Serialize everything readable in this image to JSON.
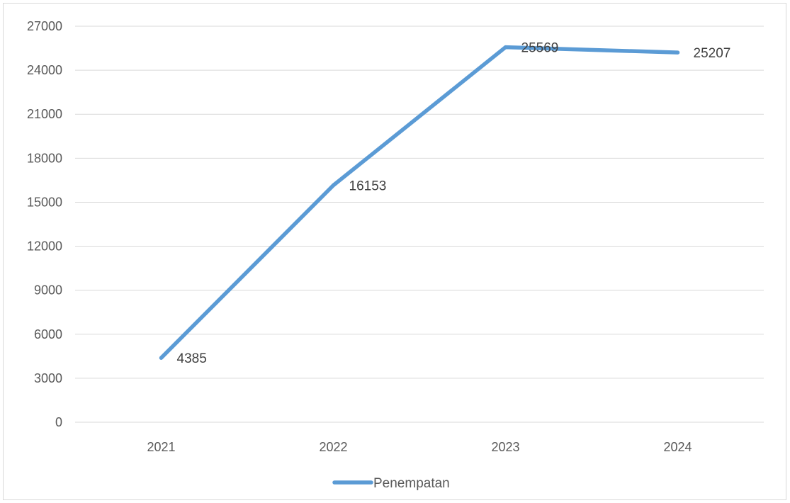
{
  "chart_data": {
    "type": "line",
    "title": "",
    "xlabel": "",
    "ylabel": "",
    "categories": [
      "2021",
      "2022",
      "2023",
      "2024"
    ],
    "ylim": [
      0,
      27000
    ],
    "ytick_step": 3000,
    "yticks": [
      "0",
      "3000",
      "6000",
      "9000",
      "12000",
      "15000",
      "18000",
      "21000",
      "24000",
      "27000"
    ],
    "grid": true,
    "legend_position": "bottom",
    "series": [
      {
        "name": "Penempatan",
        "color": "#5b9bd5",
        "values": [
          4385,
          16153,
          25569,
          25207
        ],
        "labels": [
          "4385",
          "16153",
          "25569",
          "25207"
        ]
      }
    ]
  }
}
